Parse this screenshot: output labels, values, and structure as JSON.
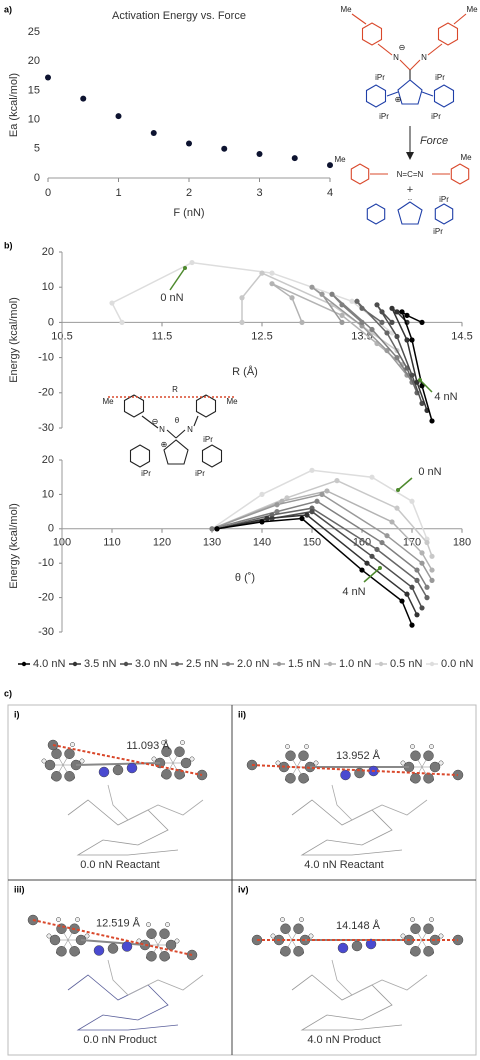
{
  "figure": {
    "panel_labels": [
      "a)",
      "b)",
      "c)"
    ],
    "scheme": {
      "me": "Me",
      "n": "N",
      "ipr": "iPr",
      "force": "Force",
      "plus": "+",
      "carbodiimide": "N=C=N",
      "minus": "⊖",
      "plus_charge": "⊕",
      "r": "R",
      "theta": "θ",
      "lone_pair": ".."
    },
    "structures": [
      {
        "label": "i)",
        "distance": "11.093 Å",
        "caption": "0.0 nN Reactant"
      },
      {
        "label": "ii)",
        "distance": "13.952 Å",
        "caption": "4.0 nN Reactant"
      },
      {
        "label": "iii)",
        "distance": "12.519 Å",
        "caption": "0.0 nN Product"
      },
      {
        "label": "iv)",
        "distance": "14.148 Å",
        "caption": "4.0 nN Product"
      }
    ]
  },
  "chart_data": [
    {
      "type": "scatter",
      "title": "Activation Energy vs. Force",
      "x_label": "F (nN)",
      "y_label": "Ea (kcal/mol)",
      "x": [
        0,
        0.5,
        1,
        1.5,
        2,
        2.5,
        3,
        3.5,
        4
      ],
      "values": [
        17.2,
        13.6,
        10.6,
        7.7,
        5.9,
        5.0,
        4.1,
        3.4,
        2.2
      ],
      "color": "#0d1330",
      "xlim": [
        0,
        4
      ],
      "ylim": [
        0,
        25
      ],
      "xticks": [
        0,
        1,
        2,
        3,
        4
      ],
      "yticks": [
        0,
        5,
        10,
        15,
        20,
        25
      ]
    },
    {
      "type": "line",
      "x_label": "R (Å)",
      "y_label": "Energy (kcal/mol)",
      "annotations": [
        "0 nN",
        "4 nN"
      ],
      "xlim": [
        10.5,
        14.5
      ],
      "ylim": [
        -30,
        20
      ],
      "xticks": [
        10.5,
        11.5,
        12.5,
        13.5,
        14.5
      ],
      "yticks": [
        -30,
        -20,
        -10,
        0,
        10,
        20
      ],
      "legend": "bottom",
      "series": [
        {
          "name": "4.0 nN",
          "color": "#000000",
          "x": [
            14.1,
            13.95,
            13.9,
            14.0,
            14.1,
            14.2
          ],
          "values": [
            0,
            2,
            3,
            -5,
            -18,
            -28
          ]
        },
        {
          "name": "3.5 nN",
          "color": "#333333",
          "x": [
            13.95,
            13.85,
            13.8,
            13.95,
            14.05,
            14.15
          ],
          "values": [
            0,
            3,
            4,
            -5,
            -17,
            -25
          ]
        },
        {
          "name": "3.0 nN",
          "color": "#4d4d4d",
          "x": [
            13.8,
            13.7,
            13.65,
            13.85,
            14.0,
            14.1
          ],
          "values": [
            0,
            3,
            5,
            -4,
            -15,
            -23
          ]
        },
        {
          "name": "2.5 nN",
          "color": "#666666",
          "x": [
            13.7,
            13.5,
            13.45,
            13.75,
            13.95,
            14.05
          ],
          "values": [
            0,
            4,
            6,
            -3,
            -13,
            -20
          ]
        },
        {
          "name": "2.0 nN",
          "color": "#808080",
          "x": [
            13.5,
            13.3,
            13.2,
            13.6,
            13.85,
            14.0
          ],
          "values": [
            0,
            5,
            8,
            -2,
            -10,
            -17
          ]
        },
        {
          "name": "1.5 nN",
          "color": "#999999",
          "x": [
            13.3,
            13.1,
            13.0,
            13.5,
            13.75,
            13.95
          ],
          "values": [
            0,
            8,
            10,
            -1,
            -8,
            -15
          ]
        },
        {
          "name": "1.0 nN",
          "color": "#b3b3b3",
          "x": [
            12.9,
            12.8,
            12.6,
            13.3,
            13.65,
            13.9
          ],
          "values": [
            0,
            7,
            11,
            2,
            -6,
            -12
          ]
        },
        {
          "name": "0.5 nN",
          "color": "#c8c8c8",
          "x": [
            12.3,
            12.3,
            12.5,
            13.2,
            13.6,
            13.85
          ],
          "values": [
            0,
            7,
            14,
            5,
            -3,
            -8
          ]
        },
        {
          "name": "0.0 nN",
          "color": "#dddddd",
          "x": [
            11.1,
            11.0,
            11.8,
            12.6,
            13.4,
            13.8
          ],
          "values": [
            0,
            5.5,
            17,
            14,
            6,
            -3
          ]
        }
      ]
    },
    {
      "type": "line",
      "x_label": "θ (˚)",
      "y_label": "Energy (kcal/mol)",
      "annotations": [
        "0 nN",
        "4 nN"
      ],
      "xlim": [
        100,
        180
      ],
      "ylim": [
        -30,
        20
      ],
      "xticks": [
        100,
        110,
        120,
        130,
        140,
        150,
        160,
        170,
        180
      ],
      "yticks": [
        -30,
        -20,
        -10,
        0,
        10,
        20
      ],
      "series": [
        {
          "color": "#000000",
          "x": [
            131,
            140,
            148,
            160,
            168,
            170
          ],
          "values": [
            0,
            2,
            3,
            -12,
            -21,
            -28
          ]
        },
        {
          "color": "#333333",
          "x": [
            131,
            141,
            149,
            161,
            169,
            171
          ],
          "values": [
            0,
            3,
            4,
            -10,
            -19,
            -25
          ]
        },
        {
          "color": "#4d4d4d",
          "x": [
            131,
            142,
            150,
            162,
            170,
            172
          ],
          "values": [
            0,
            3,
            5,
            -8,
            -17,
            -23
          ]
        },
        {
          "color": "#666666",
          "x": [
            131,
            142,
            150,
            163,
            171,
            173
          ],
          "values": [
            0,
            4,
            6,
            -6,
            -15,
            -20
          ]
        },
        {
          "color": "#808080",
          "x": [
            130,
            143,
            151,
            164,
            171,
            173
          ],
          "values": [
            0,
            5,
            8,
            -4,
            -12,
            -17
          ]
        },
        {
          "color": "#999999",
          "x": [
            130,
            143,
            152,
            165,
            172,
            174
          ],
          "values": [
            0,
            7,
            10,
            -2,
            -10,
            -15
          ]
        },
        {
          "color": "#b3b3b3",
          "x": [
            130,
            144,
            153,
            166,
            172,
            174
          ],
          "values": [
            0,
            8,
            11,
            2,
            -7,
            -12
          ]
        },
        {
          "color": "#c8c8c8",
          "x": [
            130,
            145,
            155,
            167,
            173,
            174
          ],
          "values": [
            0,
            9,
            14,
            6,
            -4,
            -8
          ]
        },
        {
          "color": "#dddddd",
          "x": [
            130,
            140,
            150,
            162,
            170,
            173
          ],
          "values": [
            0,
            10,
            17,
            15,
            8,
            -3
          ]
        }
      ]
    }
  ]
}
